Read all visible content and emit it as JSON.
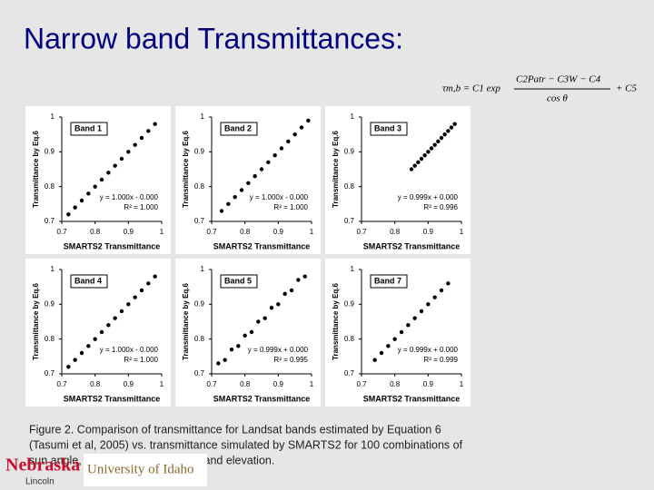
{
  "title": "Narrow band Transmittances:",
  "formula": {
    "lhs": "τm,b = C1 exp",
    "numerator": "C2Patr − C3W − C4",
    "denominator": "cos θ",
    "rhs": "+ C5"
  },
  "caption": [
    "Figure 2. Comparison of transmittance for Landsat bands estimated by Equation 6",
    "(Tasumi et al, 2005) vs. transmittance simulated by SMARTS2 for 100 combinations of",
    "sun angle, precipitable water, and land elevation."
  ],
  "logos": {
    "nebraska": "Nebraska",
    "lincoln": "Lincoln",
    "idaho": "University of Idaho"
  },
  "chart_data": [
    {
      "type": "scatter",
      "title": "Band 1",
      "xlabel": "SMARTS2 Transmittance",
      "ylabel": "Transmittance by Eq.6",
      "color": "#000000",
      "x": [
        0.72,
        0.74,
        0.76,
        0.78,
        0.8,
        0.82,
        0.84,
        0.86,
        0.88,
        0.9,
        0.92,
        0.94,
        0.96,
        0.98
      ],
      "y": [
        0.72,
        0.74,
        0.76,
        0.78,
        0.8,
        0.82,
        0.84,
        0.86,
        0.88,
        0.9,
        0.92,
        0.94,
        0.96,
        0.98
      ],
      "xlim": [
        0.7,
        1
      ],
      "ylim": [
        0.7,
        1
      ],
      "xticks": [
        0.7,
        0.8,
        0.9,
        1
      ],
      "yticks": [
        0.7,
        0.8,
        0.9,
        1
      ],
      "annotations": [
        "y = 1.000x - 0.000",
        "R² = 1.000"
      ]
    },
    {
      "type": "scatter",
      "title": "Band 2",
      "xlabel": "SMARTS2 Transmittance",
      "ylabel": "Transmittance by Eq.6",
      "color": "#000000",
      "x": [
        0.73,
        0.75,
        0.77,
        0.79,
        0.81,
        0.83,
        0.85,
        0.87,
        0.89,
        0.91,
        0.93,
        0.95,
        0.97,
        0.99
      ],
      "y": [
        0.73,
        0.75,
        0.77,
        0.79,
        0.81,
        0.83,
        0.85,
        0.87,
        0.89,
        0.91,
        0.93,
        0.95,
        0.97,
        0.99
      ],
      "xlim": [
        0.7,
        1
      ],
      "ylim": [
        0.7,
        1
      ],
      "xticks": [
        0.7,
        0.8,
        0.9,
        1
      ],
      "yticks": [
        0.7,
        0.8,
        0.9,
        1
      ],
      "annotations": [
        "y = 1.000x - 0.000",
        "R² = 1.000"
      ]
    },
    {
      "type": "scatter",
      "title": "Band 3",
      "xlabel": "SMARTS2 Transmittance",
      "ylabel": "Transmittance by Eq.6",
      "color": "#000000",
      "x": [
        0.85,
        0.86,
        0.87,
        0.88,
        0.89,
        0.9,
        0.91,
        0.92,
        0.93,
        0.94,
        0.95,
        0.96,
        0.97,
        0.98
      ],
      "y": [
        0.85,
        0.86,
        0.87,
        0.88,
        0.89,
        0.9,
        0.91,
        0.92,
        0.93,
        0.94,
        0.95,
        0.96,
        0.97,
        0.98
      ],
      "xlim": [
        0.7,
        1
      ],
      "ylim": [
        0.7,
        1
      ],
      "xticks": [
        0.7,
        0.8,
        0.9,
        1
      ],
      "yticks": [
        0.7,
        0.8,
        0.9,
        1
      ],
      "annotations": [
        "y = 0.999x + 0.000",
        "R² = 0.996"
      ]
    },
    {
      "type": "scatter",
      "title": "Band 4",
      "xlabel": "SMARTS2 Transmittance",
      "ylabel": "Transmittance by Eq.6",
      "color": "#000000",
      "x": [
        0.72,
        0.74,
        0.76,
        0.78,
        0.8,
        0.82,
        0.84,
        0.86,
        0.88,
        0.9,
        0.92,
        0.94,
        0.96,
        0.98
      ],
      "y": [
        0.72,
        0.74,
        0.76,
        0.78,
        0.8,
        0.82,
        0.84,
        0.86,
        0.88,
        0.9,
        0.92,
        0.94,
        0.96,
        0.98
      ],
      "xlim": [
        0.7,
        1
      ],
      "ylim": [
        0.7,
        1
      ],
      "xticks": [
        0.7,
        0.8,
        0.9,
        1
      ],
      "yticks": [
        0.7,
        0.8,
        0.9,
        1
      ],
      "annotations": [
        "y = 1.000x - 0.000",
        "R² = 1.000"
      ]
    },
    {
      "type": "scatter",
      "title": "Band 5",
      "xlabel": "SMARTS2 Transmittance",
      "ylabel": "Transmittance by Eq.6",
      "color": "#000000",
      "x": [
        0.72,
        0.74,
        0.76,
        0.78,
        0.8,
        0.82,
        0.84,
        0.86,
        0.88,
        0.9,
        0.92,
        0.94,
        0.96,
        0.98
      ],
      "y": [
        0.73,
        0.74,
        0.77,
        0.78,
        0.81,
        0.82,
        0.85,
        0.86,
        0.89,
        0.9,
        0.93,
        0.94,
        0.97,
        0.98
      ],
      "xlim": [
        0.7,
        1
      ],
      "ylim": [
        0.7,
        1
      ],
      "xticks": [
        0.7,
        0.8,
        0.9,
        1
      ],
      "yticks": [
        0.7,
        0.8,
        0.9,
        1
      ],
      "annotations": [
        "y = 0.999x + 0.000",
        "R² = 0.995"
      ]
    },
    {
      "type": "scatter",
      "title": "Band 7",
      "xlabel": "SMARTS2 Transmittance",
      "ylabel": "Transmittance by Eq.6",
      "color": "#000000",
      "x": [
        0.74,
        0.76,
        0.78,
        0.8,
        0.82,
        0.84,
        0.86,
        0.88,
        0.9,
        0.92,
        0.94,
        0.96
      ],
      "y": [
        0.74,
        0.76,
        0.78,
        0.8,
        0.82,
        0.84,
        0.86,
        0.88,
        0.9,
        0.92,
        0.94,
        0.96
      ],
      "xlim": [
        0.7,
        1
      ],
      "ylim": [
        0.7,
        1
      ],
      "xticks": [
        0.7,
        0.8,
        0.9,
        1
      ],
      "yticks": [
        0.7,
        0.8,
        0.9,
        1
      ],
      "annotations": [
        "y = 0.999x + 0.000",
        "R² = 0.999"
      ]
    }
  ]
}
